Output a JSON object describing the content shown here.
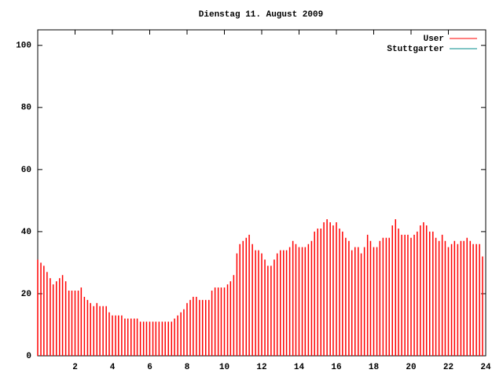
{
  "chart_data": {
    "type": "impulse",
    "title": "Dienstag 11. August 2009",
    "xlim": [
      0,
      24
    ],
    "xticks": [
      2,
      4,
      6,
      8,
      10,
      12,
      14,
      16,
      18,
      20,
      22,
      24
    ],
    "ylim": [
      0,
      105
    ],
    "yticks": [
      0,
      20,
      40,
      60,
      80,
      100
    ],
    "legend": "top-right",
    "series": [
      {
        "name": "User",
        "color": "#ff0000",
        "x": [
          0,
          0.17,
          0.33,
          0.5,
          0.67,
          0.83,
          1,
          1.17,
          1.33,
          1.5,
          1.67,
          1.83,
          2,
          2.17,
          2.33,
          2.5,
          2.67,
          2.83,
          3,
          3.17,
          3.33,
          3.5,
          3.67,
          3.83,
          4,
          4.17,
          4.33,
          4.5,
          4.67,
          4.83,
          5,
          5.17,
          5.33,
          5.5,
          5.67,
          5.83,
          6,
          6.17,
          6.33,
          6.5,
          6.67,
          6.83,
          7,
          7.17,
          7.33,
          7.5,
          7.67,
          7.83,
          8,
          8.17,
          8.33,
          8.5,
          8.67,
          8.83,
          9,
          9.17,
          9.33,
          9.5,
          9.67,
          9.83,
          10,
          10.17,
          10.33,
          10.5,
          10.67,
          10.83,
          11,
          11.17,
          11.33,
          11.5,
          11.67,
          11.83,
          12,
          12.17,
          12.33,
          12.5,
          12.67,
          12.83,
          13,
          13.17,
          13.33,
          13.5,
          13.67,
          13.83,
          14,
          14.17,
          14.33,
          14.5,
          14.67,
          14.83,
          15,
          15.17,
          15.33,
          15.5,
          15.67,
          15.83,
          16,
          16.17,
          16.33,
          16.5,
          16.67,
          16.83,
          17,
          17.17,
          17.33,
          17.5,
          17.67,
          17.83,
          18,
          18.17,
          18.33,
          18.5,
          18.67,
          18.83,
          19,
          19.17,
          19.33,
          19.5,
          19.67,
          19.83,
          20,
          20.17,
          20.33,
          20.5,
          20.67,
          20.83,
          21,
          21.17,
          21.33,
          21.5,
          21.67,
          21.83,
          22,
          22.17,
          22.33,
          22.5,
          22.67,
          22.83,
          23,
          23.17,
          23.33,
          23.5,
          23.67,
          23.83
        ],
        "values": [
          31,
          30,
          29,
          27,
          25,
          23,
          24,
          25,
          26,
          24,
          21,
          21,
          21,
          21,
          22,
          19,
          18,
          17,
          16,
          17,
          16,
          16,
          16,
          14,
          13,
          13,
          13,
          13,
          12,
          12,
          12,
          12,
          12,
          11,
          11,
          11,
          11,
          11,
          11,
          11,
          11,
          11,
          11,
          11,
          12,
          13,
          14,
          15,
          17,
          18,
          19,
          19,
          18,
          18,
          18,
          18,
          21,
          22,
          22,
          22,
          22,
          23,
          24,
          26,
          33,
          36,
          37,
          38,
          39,
          36,
          34,
          34,
          33,
          31,
          29,
          29,
          31,
          33,
          34,
          34,
          34,
          35,
          37,
          36,
          35,
          35,
          35,
          36,
          37,
          40,
          41,
          41,
          43,
          44,
          43,
          42,
          43,
          41,
          40,
          38,
          37,
          34,
          35,
          35,
          33,
          35,
          39,
          37,
          35,
          35,
          37,
          38,
          38,
          38,
          42,
          44,
          41,
          39,
          39,
          39,
          38,
          39,
          40,
          42,
          43,
          42,
          40,
          40,
          38,
          37,
          39,
          37,
          35,
          36,
          37,
          36,
          37,
          37,
          38,
          37,
          36,
          36,
          36,
          32
        ]
      },
      {
        "name": "Stuttgarter",
        "color": "#008b8b",
        "x": [],
        "values": []
      }
    ]
  }
}
